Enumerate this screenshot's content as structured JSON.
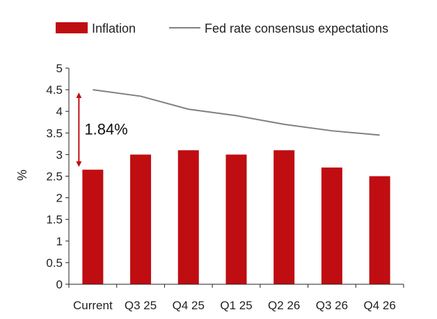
{
  "chart_data": {
    "type": "bar",
    "categories": [
      "Current",
      "Q3 25",
      "Q4 25",
      "Q1 25",
      "Q2 26",
      "Q3 26",
      "Q4 26"
    ],
    "series": [
      {
        "name": "Inflation",
        "type": "bar",
        "color": "#c00d12",
        "values": [
          2.65,
          3.0,
          3.1,
          3.0,
          3.1,
          2.7,
          2.5
        ]
      },
      {
        "name": "Fed rate consensus expectations",
        "type": "line",
        "color": "#808080",
        "values": [
          4.5,
          4.35,
          4.05,
          3.9,
          3.7,
          3.55,
          3.45
        ]
      }
    ],
    "ylabel": "%",
    "xlabel": "",
    "ylim": [
      0,
      5
    ],
    "yticks": [
      "0",
      "0.5",
      "1",
      "1.5",
      "2",
      "2.5",
      "3",
      "3.5",
      "4",
      "4.5",
      "5"
    ],
    "legend_position": "top",
    "grid": false,
    "annotation": {
      "text": "1.84%",
      "from_value": 2.65,
      "to_value": 4.5,
      "category": "Current",
      "color": "#c00d12"
    }
  }
}
